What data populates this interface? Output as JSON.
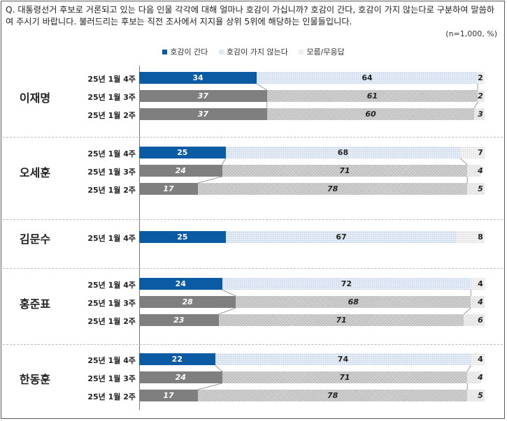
{
  "question": "Q. 대통령선거 후보로 거론되고 있는 다음 인물 각각에 대해 얼마나 호감이 가십니까? 호감이 간다, 호감이 가지 않는다로 구분하여 말씀하여 주시기 바랍니다. 불러드리는 후보는 직전 조사에서 지지율 상위 5위에 해당하는 인물들입니다.",
  "sample_note": "(n=1,000, %)",
  "legend": [
    {
      "label": "호감이 간다",
      "color": "#0b5aa4"
    },
    {
      "label": "호감이 가지 않는다",
      "color": "#dfe7f3"
    },
    {
      "label": "모름/무응답",
      "color": "#eeeeee"
    }
  ],
  "colors": {
    "current": "#0b5aa4",
    "past": "#7f7f7f"
  },
  "chart_data": {
    "type": "bar",
    "stacked": true,
    "orientation": "horizontal",
    "xlim": [
      0,
      100
    ],
    "series_names": [
      "호감이 간다",
      "호감이 가지 않는다",
      "모름/무응답"
    ],
    "groups": [
      {
        "name": "이재명",
        "rows": [
          {
            "label": "25년 1월 4주",
            "values": [
              34,
              64,
              2
            ]
          },
          {
            "label": "25년 1월 3주",
            "values": [
              37,
              61,
              2
            ]
          },
          {
            "label": "25년 1월 2주",
            "values": [
              37,
              60,
              3
            ]
          }
        ]
      },
      {
        "name": "오세훈",
        "rows": [
          {
            "label": "25년 1월 4주",
            "values": [
              25,
              68,
              7
            ]
          },
          {
            "label": "25년 1월 3주",
            "values": [
              24,
              71,
              4
            ]
          },
          {
            "label": "25년 1월 2주",
            "values": [
              17,
              78,
              5
            ]
          }
        ]
      },
      {
        "name": "김문수",
        "rows": [
          {
            "label": "25년 1월 4주",
            "values": [
              25,
              67,
              8
            ]
          }
        ]
      },
      {
        "name": "홍준표",
        "rows": [
          {
            "label": "25년 1월 4주",
            "values": [
              24,
              72,
              4
            ]
          },
          {
            "label": "25년 1월 3주",
            "values": [
              28,
              68,
              4
            ]
          },
          {
            "label": "25년 1월 2주",
            "values": [
              23,
              71,
              6
            ]
          }
        ]
      },
      {
        "name": "한동훈",
        "rows": [
          {
            "label": "25년 1월 4주",
            "values": [
              22,
              74,
              4
            ]
          },
          {
            "label": "25년 1월 3주",
            "values": [
              24,
              71,
              4
            ]
          },
          {
            "label": "25년 1월 2주",
            "values": [
              17,
              78,
              5
            ]
          }
        ]
      }
    ]
  }
}
